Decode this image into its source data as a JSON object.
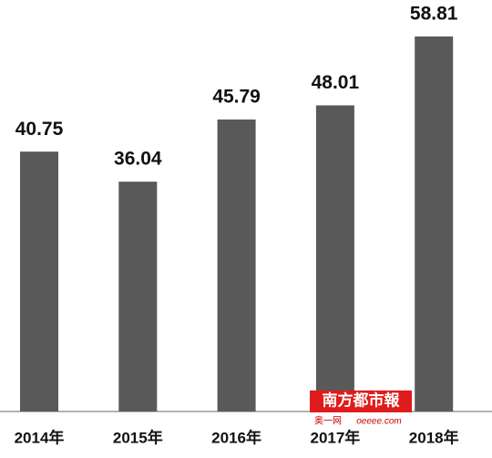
{
  "chart_data": {
    "type": "bar",
    "categories": [
      "2014年",
      "2015年",
      "2016年",
      "2017年",
      "2018年"
    ],
    "values": [
      40.75,
      36.04,
      45.79,
      48.01,
      58.81
    ],
    "color": "#595959",
    "watermark": {
      "name": "南方都市報",
      "site": "奥一网",
      "url": "oeeee.com"
    }
  }
}
